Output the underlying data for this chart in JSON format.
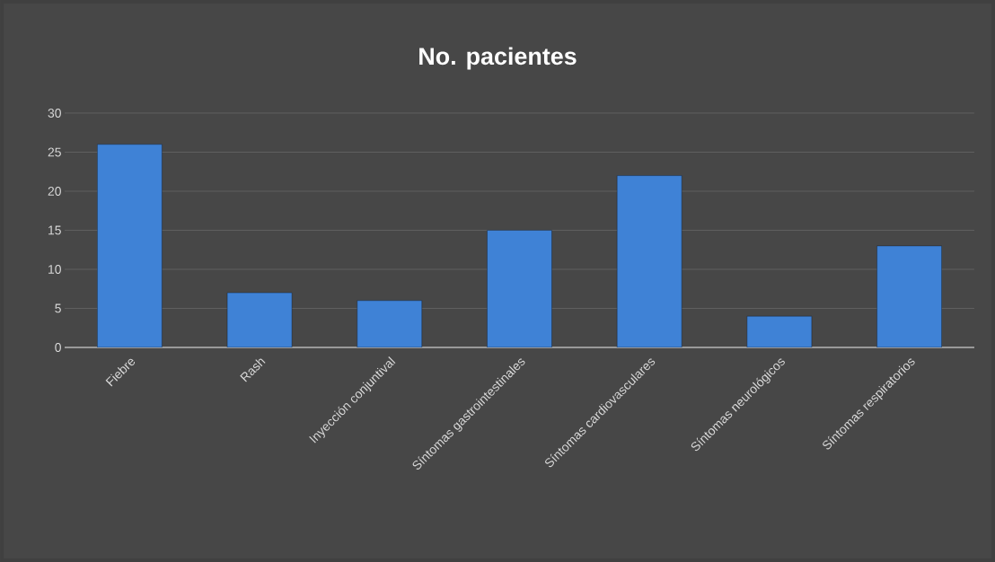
{
  "chart_data": {
    "type": "bar",
    "title": "No. pacientes",
    "categories": [
      "Fiebre",
      "Rash",
      "Inyección conjuntival",
      "Síntomas gastrointestinales",
      "Síntomas cardiovasculares",
      "Síntomas neurológicos",
      "Síntomas respiratorios"
    ],
    "values": [
      26,
      7,
      6,
      15,
      22,
      4,
      13
    ],
    "color": "#3f82d6",
    "ylim": [
      0,
      30
    ],
    "yticks": [
      0,
      5,
      10,
      15,
      20,
      25,
      30
    ],
    "grid": "y"
  }
}
